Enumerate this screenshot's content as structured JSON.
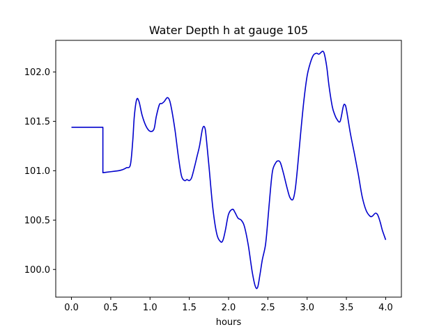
{
  "chart_data": {
    "type": "line",
    "title": "Water Depth h at gauge 105",
    "xlabel": "hours",
    "ylabel": "",
    "xlim": [
      -0.2,
      4.2
    ],
    "ylim": [
      99.72,
      102.32
    ],
    "x_ticks": [
      0.0,
      0.5,
      1.0,
      1.5,
      2.0,
      2.5,
      3.0,
      3.5,
      4.0
    ],
    "x_tick_labels": [
      "0.0",
      "0.5",
      "1.0",
      "1.5",
      "2.0",
      "2.5",
      "3.0",
      "3.5",
      "4.0"
    ],
    "y_ticks": [
      100.0,
      100.5,
      101.0,
      101.5,
      102.0
    ],
    "y_tick_labels": [
      "100.0",
      "100.5",
      "101.0",
      "101.5",
      "102.0"
    ],
    "grid": false,
    "legend": "none",
    "series": [
      {
        "color": "#0000cc",
        "x": [
          0.0,
          0.1,
          0.2,
          0.3,
          0.35,
          0.4,
          0.4,
          0.45,
          0.5,
          0.55,
          0.6,
          0.65,
          0.7,
          0.75,
          0.78,
          0.8,
          0.83,
          0.86,
          0.9,
          0.95,
          1.0,
          1.05,
          1.08,
          1.12,
          1.15,
          1.18,
          1.22,
          1.25,
          1.28,
          1.32,
          1.36,
          1.4,
          1.44,
          1.47,
          1.5,
          1.53,
          1.57,
          1.6,
          1.63,
          1.67,
          1.7,
          1.72,
          1.75,
          1.8,
          1.85,
          1.9,
          1.93,
          1.96,
          2.0,
          2.05,
          2.08,
          2.12,
          2.16,
          2.2,
          2.25,
          2.3,
          2.34,
          2.37,
          2.4,
          2.43,
          2.47,
          2.5,
          2.53,
          2.56,
          2.6,
          2.63,
          2.66,
          2.7,
          2.74,
          2.78,
          2.82,
          2.85,
          2.88,
          2.92,
          2.96,
          3.0,
          3.04,
          3.08,
          3.12,
          3.15,
          3.18,
          3.2,
          3.22,
          3.25,
          3.28,
          3.32,
          3.35,
          3.38,
          3.42,
          3.46,
          3.48,
          3.5,
          3.55,
          3.6,
          3.65,
          3.7,
          3.75,
          3.8,
          3.83,
          3.87,
          3.9,
          3.93,
          3.96,
          4.0
        ],
        "y": [
          101.44,
          101.44,
          101.44,
          101.44,
          101.44,
          101.44,
          100.98,
          100.985,
          100.99,
          100.995,
          101.0,
          101.01,
          101.03,
          101.06,
          101.3,
          101.55,
          101.72,
          101.7,
          101.56,
          101.45,
          101.4,
          101.42,
          101.55,
          101.67,
          101.68,
          101.7,
          101.74,
          101.71,
          101.6,
          101.4,
          101.15,
          100.95,
          100.9,
          100.91,
          100.9,
          100.93,
          101.05,
          101.15,
          101.25,
          101.43,
          101.43,
          101.3,
          101.05,
          100.62,
          100.36,
          100.28,
          100.3,
          100.4,
          100.56,
          100.61,
          100.58,
          100.52,
          100.5,
          100.44,
          100.25,
          99.98,
          99.83,
          99.82,
          99.95,
          100.1,
          100.25,
          100.5,
          100.78,
          101.0,
          101.08,
          101.1,
          101.08,
          100.97,
          100.84,
          100.73,
          100.71,
          100.82,
          101.05,
          101.4,
          101.72,
          101.96,
          102.09,
          102.17,
          102.19,
          102.18,
          102.2,
          102.21,
          102.18,
          102.05,
          101.85,
          101.65,
          101.57,
          101.52,
          101.5,
          101.65,
          101.67,
          101.62,
          101.38,
          101.18,
          100.97,
          100.74,
          100.6,
          100.54,
          100.54,
          100.57,
          100.55,
          100.48,
          100.39,
          100.3
        ]
      }
    ]
  }
}
